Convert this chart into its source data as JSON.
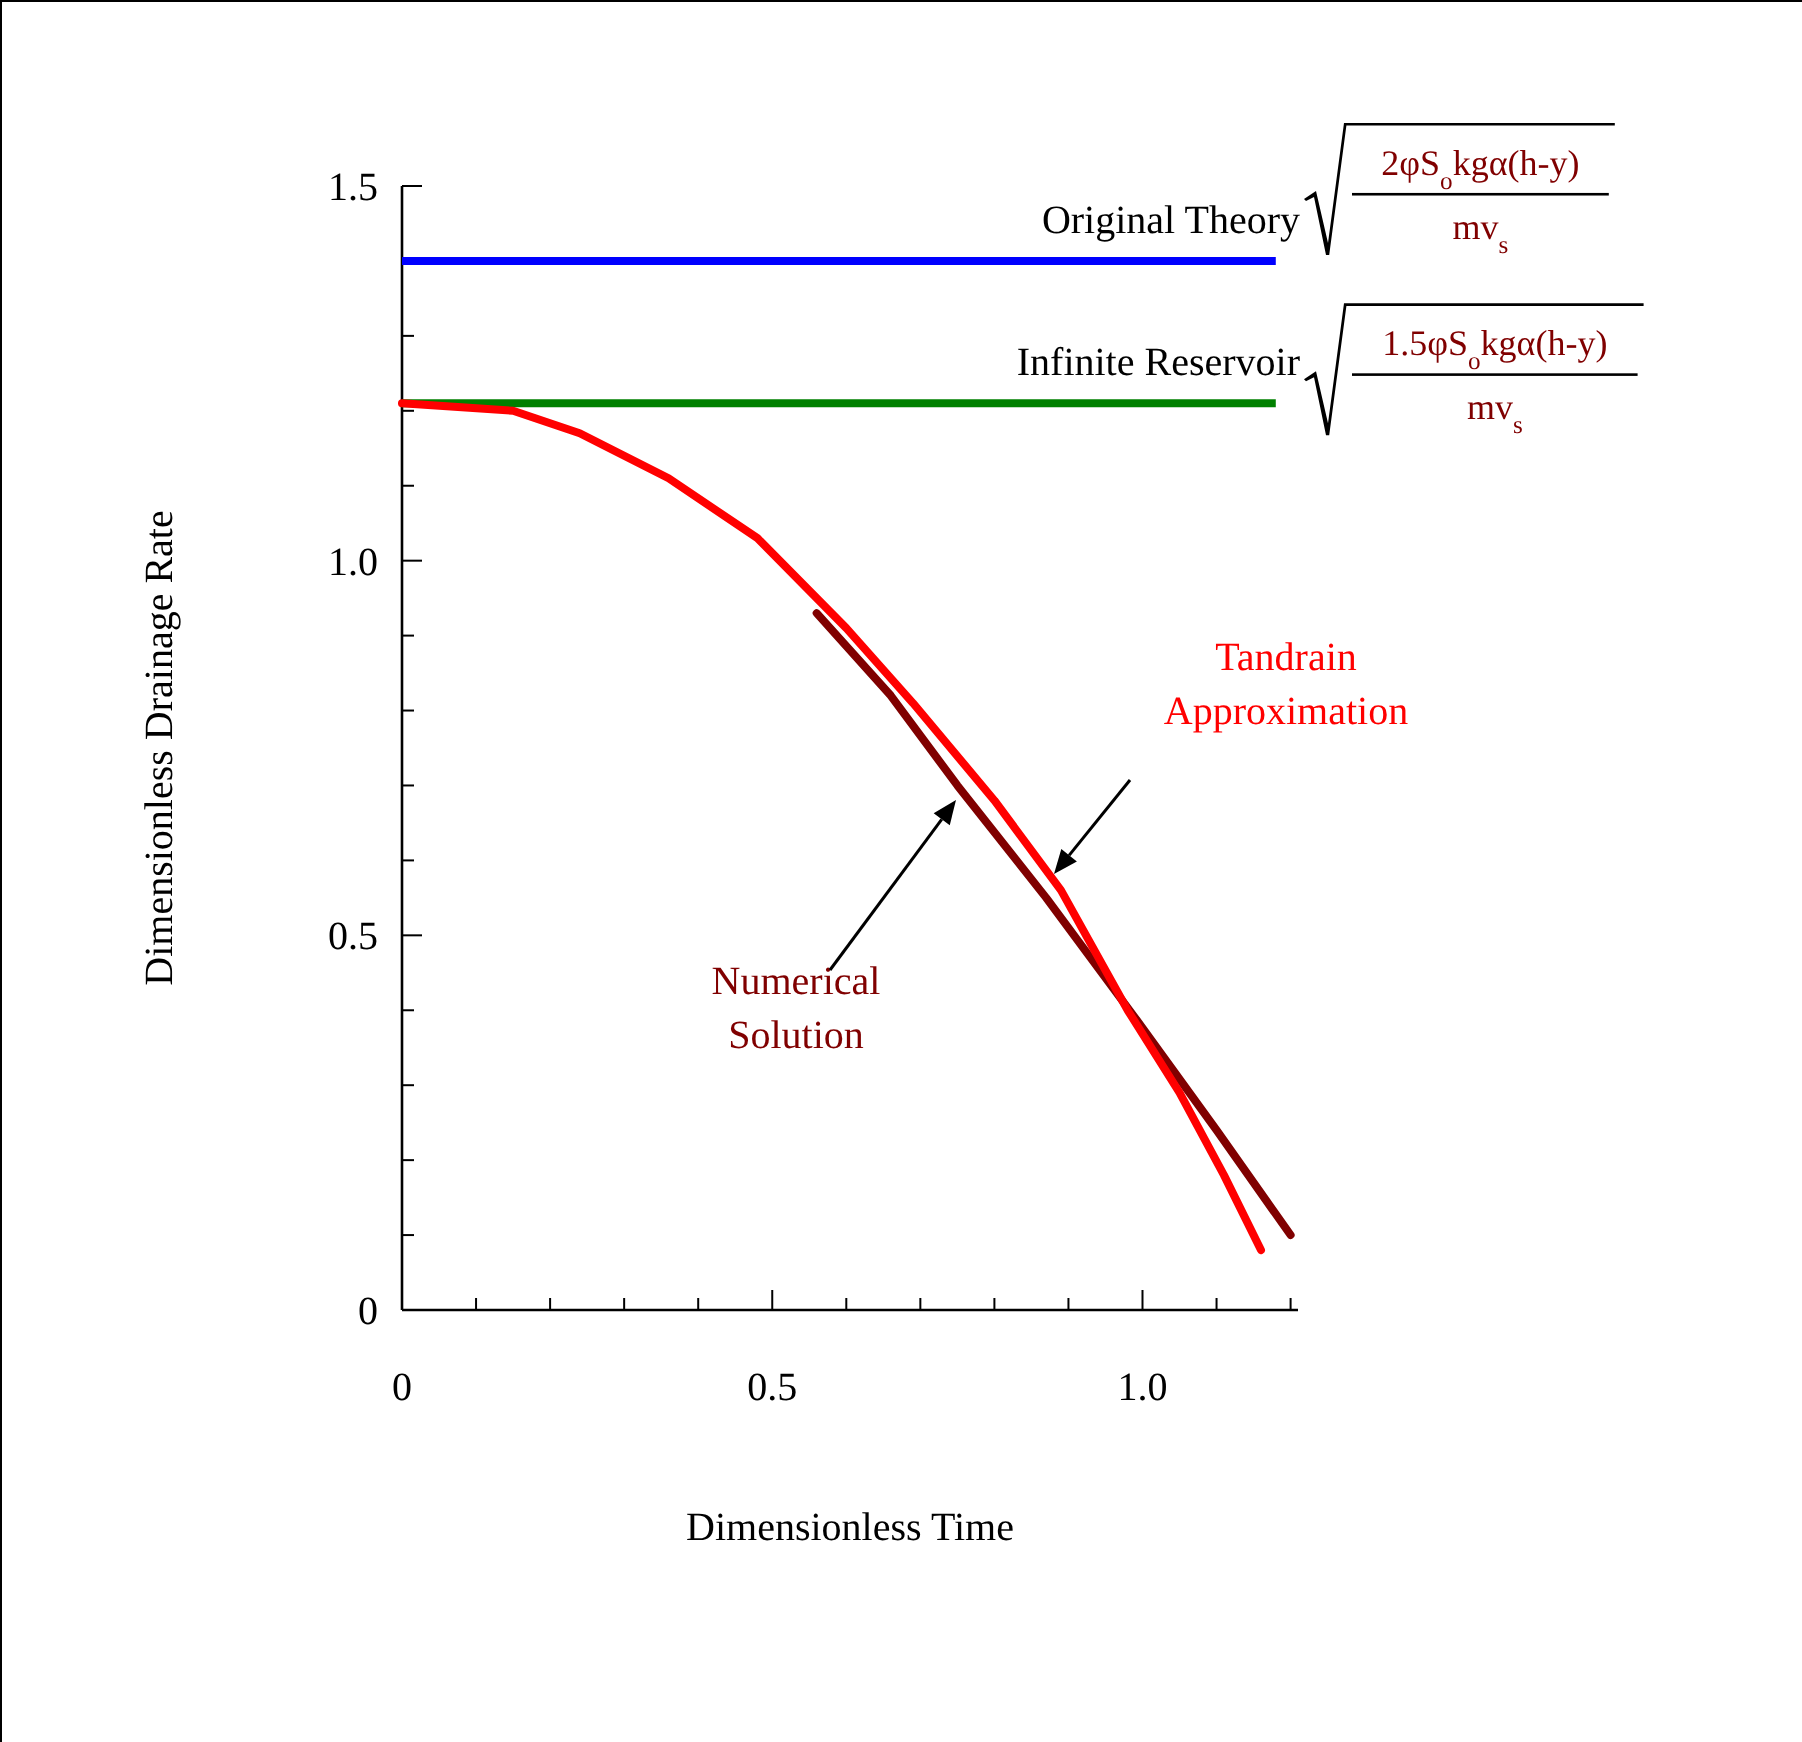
{
  "chart_data": {
    "type": "line",
    "xlabel": "Dimensionless Time",
    "ylabel": "Dimensionless Drainage Rate",
    "xlim": [
      0,
      1.21
    ],
    "ylim": [
      0,
      1.5
    ],
    "xticks": [
      0,
      {
        "value": 0.1,
        "label": null
      },
      {
        "value": 0.2,
        "label": null
      },
      {
        "value": 0.3,
        "label": null
      },
      {
        "value": 0.4,
        "label": null
      },
      0.5,
      {
        "value": 0.6,
        "label": null
      },
      {
        "value": 0.7,
        "label": null
      },
      {
        "value": 0.8,
        "label": null
      },
      {
        "value": 0.9,
        "label": null
      },
      {
        "value": 1,
        "label": "1.0"
      },
      {
        "value": 1.1,
        "label": null
      },
      {
        "value": 1.2,
        "label": null
      }
    ],
    "yticks": [
      0,
      {
        "value": 0.1,
        "label": null
      },
      {
        "value": 0.2,
        "label": null
      },
      {
        "value": 0.3,
        "label": null
      },
      {
        "value": 0.4,
        "label": null
      },
      0.5,
      {
        "value": 0.6,
        "label": null
      },
      {
        "value": 0.7,
        "label": null
      },
      {
        "value": 0.8,
        "label": null
      },
      {
        "value": 0.9,
        "label": null
      },
      {
        "value": 1,
        "label": "1.0"
      },
      {
        "value": 1.1,
        "label": null
      },
      {
        "value": 1.2,
        "label": null
      },
      {
        "value": 1.3,
        "label": null
      },
      {
        "value": 1.4,
        "label": null
      },
      1.5
    ],
    "grid": false,
    "marker": "none",
    "line_style": "solid",
    "series": [
      {
        "name": "Tandrain Approximation",
        "color": "#ff0000",
        "x": [
          0,
          0.15,
          0.24,
          0.36,
          0.48,
          0.6,
          0.69,
          0.8,
          0.89,
          0.98,
          1.05,
          1.11,
          1.16
        ],
        "values": [
          1.21,
          1.2,
          1.17,
          1.11,
          1.03,
          0.91,
          0.81,
          0.68,
          0.56,
          0.4,
          0.29,
          0.18,
          0.08
        ]
      },
      {
        "name": "Numerical Solution",
        "color": "#800000",
        "x": [
          0.56,
          0.66,
          0.75,
          0.87,
          0.99,
          1.1,
          1.2
        ],
        "values": [
          0.93,
          0.82,
          0.7,
          0.55,
          0.39,
          0.24,
          0.1
        ]
      }
    ],
    "ref_lines": [
      {
        "axis": "y",
        "value": 1.4,
        "label": "Original Theory",
        "color": "#0000ff"
      },
      {
        "axis": "y",
        "value": 1.21,
        "label": "Infinite Reservoir",
        "color": "#008000"
      }
    ],
    "annotations": [
      "2φS$_{o}$kgα(h-y)",
      "mv$_{s}$",
      "1.5φS$_{o}$kgα(h-y)",
      "mv$_{s}$"
    ]
  }
}
